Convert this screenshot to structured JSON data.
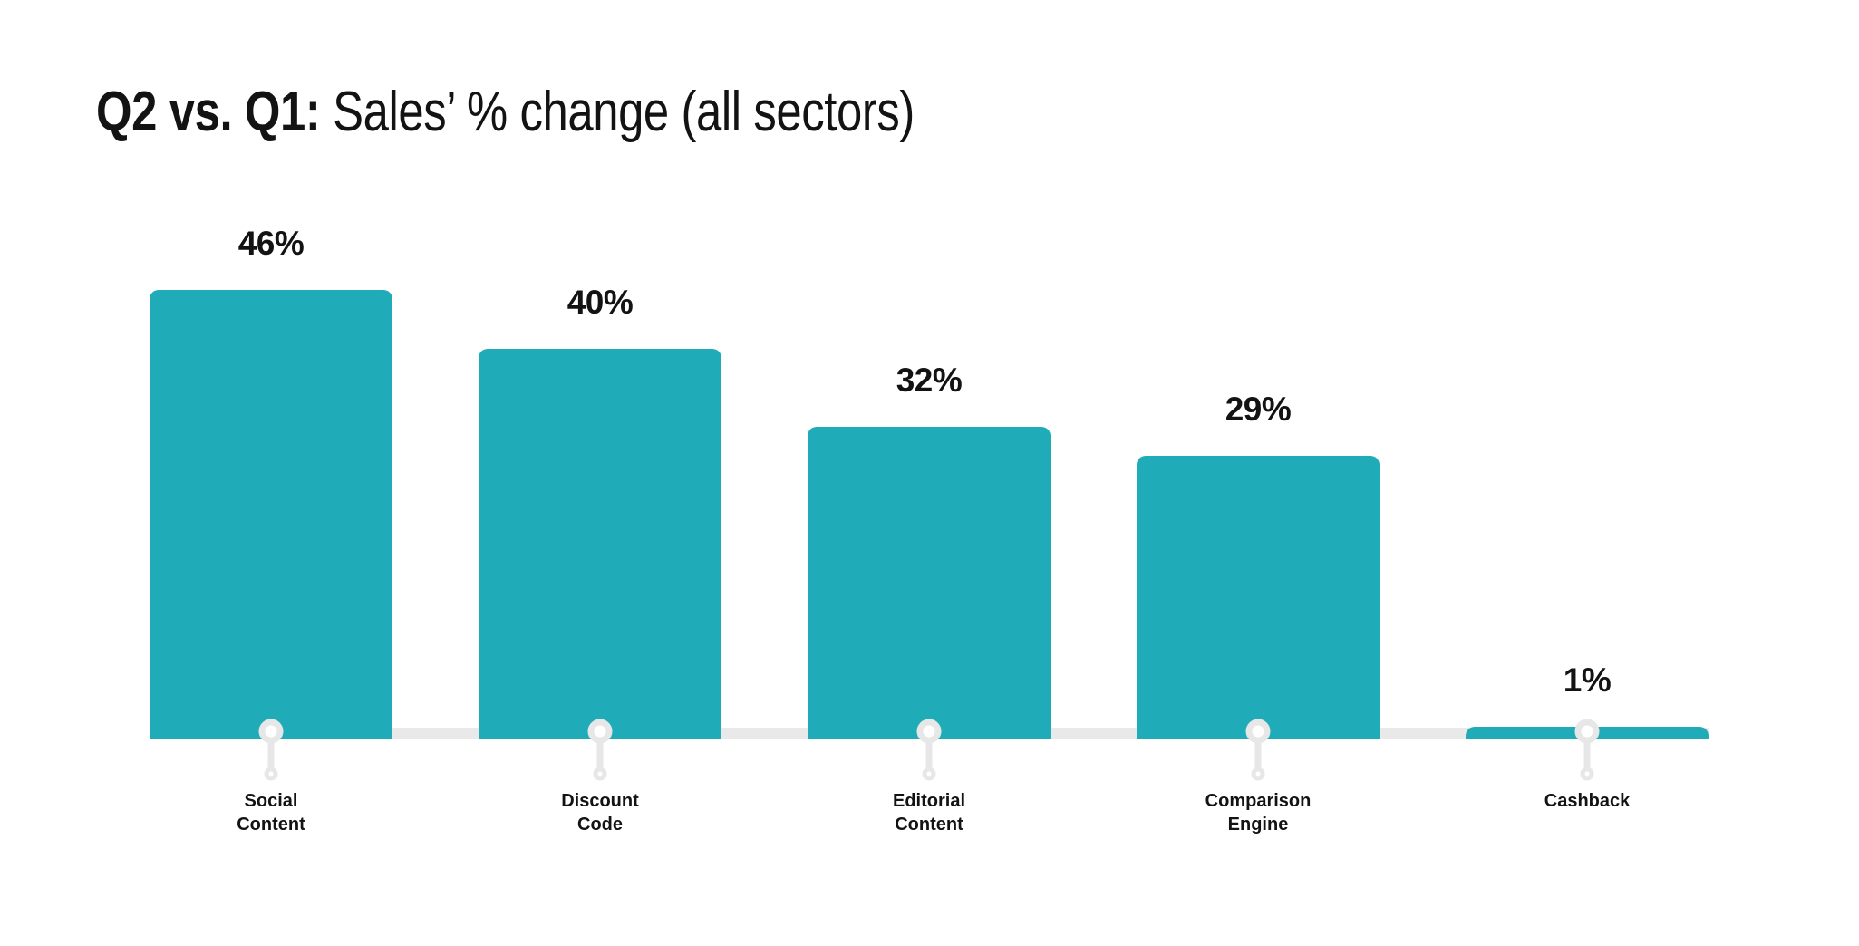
{
  "header": {
    "title_bold": "Q2 vs. Q1:",
    "title_rest": " Sales’ % change (all sectors)"
  },
  "chart_data": {
    "type": "bar",
    "title": "Q2 vs. Q1: Sales’ % change (all sectors)",
    "categories": [
      "Social Content",
      "Discount Code",
      "Editorial Content",
      "Comparison Engine",
      "Cashback"
    ],
    "category_lines": [
      "Social\nContent",
      "Discount\nCode",
      "Editorial\nContent",
      "Comparison\nEngine",
      "Cashback"
    ],
    "values": [
      46,
      40,
      32,
      29,
      1
    ],
    "value_labels": [
      "46%",
      "40%",
      "32%",
      "29%",
      "1%"
    ],
    "xlabel": "",
    "ylabel": "",
    "ylim": [
      0,
      50
    ],
    "grid": false,
    "legend": false,
    "bar_color": "#20abb8",
    "baseline_color": "#e9e9e9",
    "connector_color": "#e7e7e7",
    "text_color": "#131313",
    "background_color": "#ffffff"
  },
  "icons": {
    "connector": "pin-connector-icon"
  }
}
